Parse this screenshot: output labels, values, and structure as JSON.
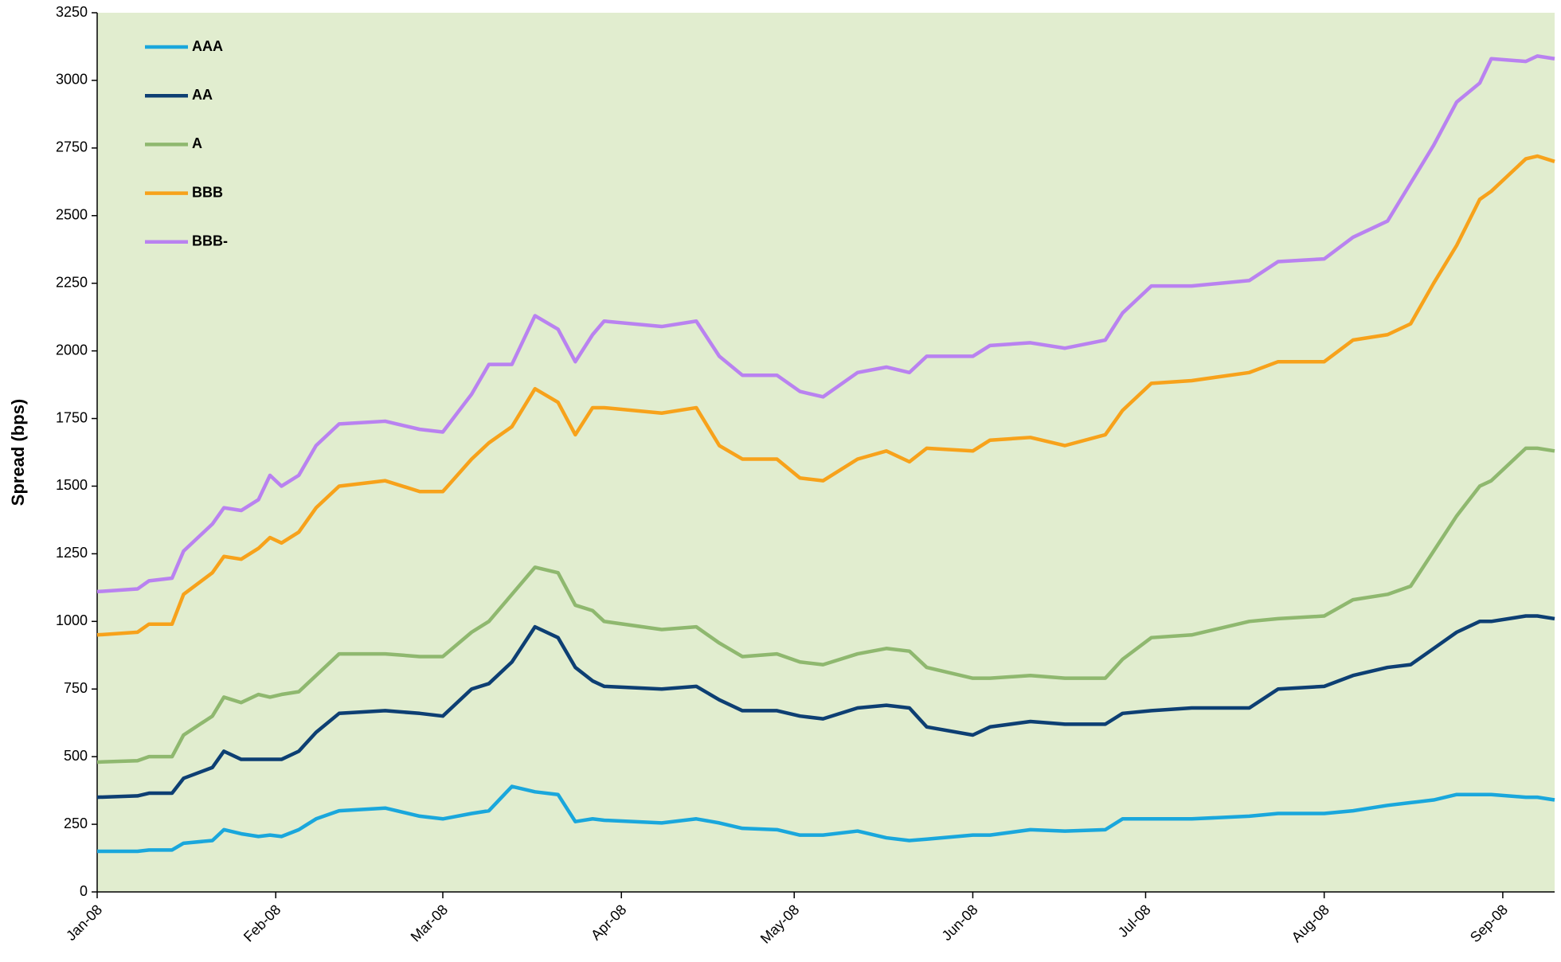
{
  "chart_data": {
    "type": "line",
    "y_label": "Spread (bps)",
    "x": [
      0,
      7,
      9,
      13,
      15,
      20,
      22,
      25,
      28,
      30,
      32,
      35,
      38,
      42,
      50,
      56,
      60,
      65,
      68,
      72,
      76,
      80,
      83,
      86,
      88,
      98,
      104,
      108,
      112,
      118,
      122,
      126,
      132,
      137,
      141,
      144,
      152,
      155,
      162,
      168,
      175,
      178,
      183,
      190,
      200,
      205,
      213,
      218,
      224,
      228,
      232,
      236,
      240,
      242,
      248,
      250,
      253
    ],
    "xlim": [
      0,
      253
    ],
    "xticks": [
      {
        "value": 0,
        "label": "Jan-08"
      },
      {
        "value": 31,
        "label": "Feb-08"
      },
      {
        "value": 60,
        "label": "Mar-08"
      },
      {
        "value": 91,
        "label": "Apr-08"
      },
      {
        "value": 121,
        "label": "May-08"
      },
      {
        "value": 152,
        "label": "Jun-08"
      },
      {
        "value": 182,
        "label": "Jul-08"
      },
      {
        "value": 213,
        "label": "Aug-08"
      },
      {
        "value": 244,
        "label": "Sep-08"
      }
    ],
    "ylim": [
      0,
      3250
    ],
    "yticks": [
      0,
      250,
      500,
      750,
      1000,
      1250,
      1500,
      1750,
      2000,
      2250,
      2500,
      2750,
      3000,
      3250
    ],
    "grid": false,
    "legend": "top-left",
    "background": "#e1edcf",
    "series": [
      {
        "name": "AAA",
        "color": "#1aa7dc",
        "values": [
          150,
          150,
          155,
          155,
          180,
          190,
          230,
          215,
          205,
          210,
          205,
          230,
          270,
          300,
          310,
          280,
          270,
          290,
          300,
          390,
          370,
          360,
          260,
          270,
          265,
          255,
          270,
          255,
          235,
          230,
          210,
          210,
          225,
          200,
          190,
          195,
          210,
          210,
          230,
          225,
          230,
          270,
          270,
          270,
          280,
          290,
          290,
          300,
          320,
          330,
          340,
          360,
          360,
          360,
          350,
          350,
          340
        ]
      },
      {
        "name": "AA",
        "color": "#0d3f73",
        "values": [
          350,
          355,
          365,
          365,
          420,
          460,
          520,
          490,
          490,
          490,
          490,
          520,
          590,
          660,
          670,
          660,
          650,
          750,
          770,
          850,
          980,
          940,
          830,
          780,
          760,
          750,
          760,
          710,
          670,
          670,
          650,
          640,
          680,
          690,
          680,
          610,
          580,
          610,
          630,
          620,
          620,
          660,
          670,
          680,
          680,
          750,
          760,
          800,
          830,
          840,
          900,
          960,
          1000,
          1000,
          1020,
          1020,
          1010
        ]
      },
      {
        "name": "A",
        "color": "#8fb86f",
        "values": [
          480,
          485,
          500,
          500,
          580,
          650,
          720,
          700,
          730,
          720,
          730,
          740,
          800,
          880,
          880,
          870,
          870,
          960,
          1000,
          1100,
          1200,
          1180,
          1060,
          1040,
          1000,
          970,
          980,
          920,
          870,
          880,
          850,
          840,
          880,
          900,
          890,
          830,
          790,
          790,
          800,
          790,
          790,
          860,
          940,
          950,
          1000,
          1010,
          1020,
          1080,
          1100,
          1130,
          1260,
          1390,
          1500,
          1520,
          1640,
          1640,
          1630
        ]
      },
      {
        "name": "BBB",
        "color": "#f7a21b",
        "values": [
          950,
          960,
          990,
          990,
          1100,
          1180,
          1240,
          1230,
          1270,
          1310,
          1290,
          1330,
          1420,
          1500,
          1520,
          1480,
          1480,
          1600,
          1660,
          1720,
          1860,
          1810,
          1690,
          1790,
          1790,
          1770,
          1790,
          1650,
          1600,
          1600,
          1530,
          1520,
          1600,
          1630,
          1590,
          1640,
          1630,
          1670,
          1680,
          1650,
          1690,
          1780,
          1880,
          1890,
          1920,
          1960,
          1960,
          2040,
          2060,
          2100,
          2250,
          2390,
          2560,
          2590,
          2710,
          2720,
          2700
        ]
      },
      {
        "name": "BBB-",
        "color": "#b982f0",
        "values": [
          1110,
          1120,
          1150,
          1160,
          1260,
          1360,
          1420,
          1410,
          1450,
          1540,
          1500,
          1540,
          1650,
          1730,
          1740,
          1710,
          1700,
          1840,
          1950,
          1950,
          2130,
          2080,
          1960,
          2060,
          2110,
          2090,
          2110,
          1980,
          1910,
          1910,
          1850,
          1830,
          1920,
          1940,
          1920,
          1980,
          1980,
          2020,
          2030,
          2010,
          2040,
          2140,
          2240,
          2240,
          2260,
          2330,
          2340,
          2420,
          2480,
          2620,
          2760,
          2920,
          2990,
          3080,
          3070,
          3090,
          3080
        ]
      }
    ]
  }
}
